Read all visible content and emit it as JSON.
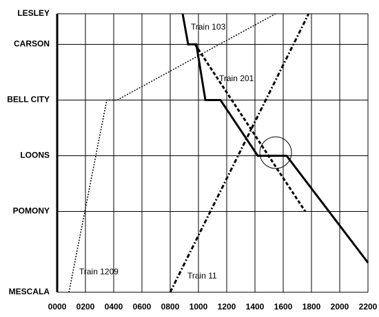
{
  "chart_data": {
    "type": "line",
    "xlim": [
      0,
      22
    ],
    "xticks": [
      {
        "value": 0,
        "label": "0000"
      },
      {
        "value": 2,
        "label": "0200"
      },
      {
        "value": 4,
        "label": "0400"
      },
      {
        "value": 6,
        "label": "0600"
      },
      {
        "value": 8,
        "label": "0800"
      },
      {
        "value": 10,
        "label": "1000"
      },
      {
        "value": 12,
        "label": "1200"
      },
      {
        "value": 14,
        "label": "1400"
      },
      {
        "value": 16,
        "label": "1600"
      },
      {
        "value": 18,
        "label": "1800"
      },
      {
        "value": 20,
        "label": "2000"
      },
      {
        "value": 22,
        "label": "2200"
      }
    ],
    "ylim": [
      0,
      100
    ],
    "yticks": [
      {
        "value": 100,
        "label": "LESLEY"
      },
      {
        "value": 89,
        "label": "CARSON"
      },
      {
        "value": 69,
        "label": "BELL CITY"
      },
      {
        "value": 49,
        "label": "LOONS"
      },
      {
        "value": 29,
        "label": "POMONY"
      },
      {
        "value": 0,
        "label": "MESCALA"
      }
    ],
    "grid": true,
    "series": [
      {
        "name": "Train 103",
        "color": "#000000",
        "style": "solid",
        "x": [
          8.88,
          9.27,
          9.85,
          10.49,
          11.56,
          14.2,
          16.24,
          22
        ],
        "values": [
          100,
          89,
          89,
          69,
          69,
          49,
          49,
          10.6
        ]
      },
      {
        "name": "Train 201",
        "color": "#000000",
        "style": "dashed",
        "x": [
          9.76,
          17.56
        ],
        "values": [
          89,
          29
        ]
      },
      {
        "name": "Train 11",
        "color": "#000000",
        "style": "dashdot",
        "x": [
          8,
          17.8
        ],
        "values": [
          0,
          100
        ]
      },
      {
        "name": "Train 1209",
        "color": "#000000",
        "style": "dotted",
        "x": [
          0.83,
          3.51,
          4.24,
          15.46
        ],
        "values": [
          0,
          69,
          69,
          100
        ]
      }
    ]
  }
}
